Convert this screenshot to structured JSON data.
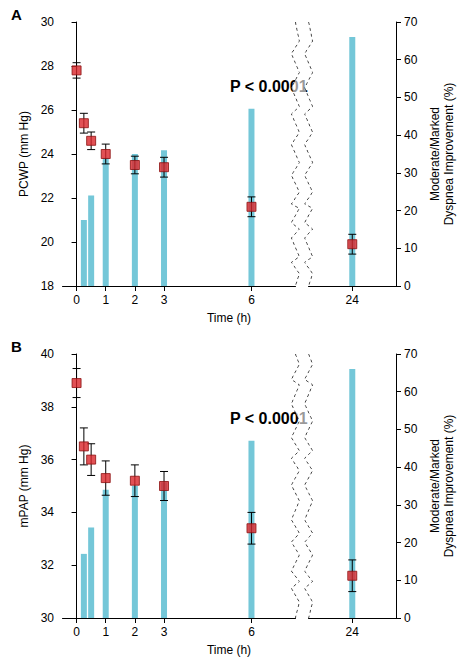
{
  "chart_data": [
    {
      "type": "scatter",
      "title": "A",
      "annotation": "P < 0.0001",
      "x_label": "Time (h)",
      "y_label": "PCWP (mm Hg)",
      "y2_label": "Moderate/Marked\nDyspnea Improvement (%)",
      "x": [
        0,
        0.25,
        0.5,
        1,
        2,
        3,
        6,
        24
      ],
      "xlim": [
        -0.5,
        25.5
      ],
      "xticks": [
        0,
        1,
        2,
        3,
        6,
        24
      ],
      "ylim": [
        18,
        30
      ],
      "yticks": [
        18,
        20,
        22,
        24,
        26,
        28,
        30
      ],
      "y2lim": [
        0,
        70
      ],
      "y2ticks": [
        0,
        10,
        20,
        30,
        40,
        50,
        60,
        70
      ],
      "grid": false,
      "series": [
        {
          "type": "bar",
          "axis": "y2",
          "color": "#74c7d8",
          "values": [
            null,
            17.5,
            24,
            34,
            35,
            36,
            47,
            66
          ]
        },
        {
          "type": "scatter",
          "color": "#d9262b",
          "marker": "square",
          "values": [
            27.8,
            25.4,
            24.6,
            24.0,
            23.5,
            23.4,
            21.6,
            19.9
          ],
          "errors": [
            0.35,
            0.45,
            0.4,
            0.45,
            0.4,
            0.45,
            0.45,
            0.45
          ]
        }
      ]
    },
    {
      "type": "scatter",
      "title": "B",
      "annotation": "P < 0.0001",
      "x_label": "Time (h)",
      "y_label": "mPAP (mm Hg)",
      "y2_label": "Moderate/Marked\nDyspnea Improvement (%)",
      "x": [
        0,
        0.25,
        0.5,
        1,
        2,
        3,
        6,
        24
      ],
      "xlim": [
        -0.5,
        25.5
      ],
      "xticks": [
        0,
        1,
        2,
        3,
        6,
        24
      ],
      "ylim": [
        30,
        40
      ],
      "yticks": [
        30,
        32,
        34,
        36,
        38,
        40
      ],
      "y2lim": [
        0,
        70
      ],
      "y2ticks": [
        0,
        10,
        20,
        30,
        40,
        50,
        60,
        70
      ],
      "grid": false,
      "series": [
        {
          "type": "bar",
          "axis": "y2",
          "color": "#74c7d8",
          "values": [
            null,
            17,
            24,
            34,
            35,
            36,
            47,
            66
          ]
        },
        {
          "type": "scatter",
          "color": "#d9262b",
          "marker": "square",
          "values": [
            38.9,
            36.5,
            36.0,
            35.3,
            35.2,
            35.0,
            33.4,
            31.6
          ],
          "errors": [
            0.55,
            0.7,
            0.6,
            0.65,
            0.6,
            0.55,
            0.6,
            0.6
          ]
        }
      ]
    }
  ]
}
